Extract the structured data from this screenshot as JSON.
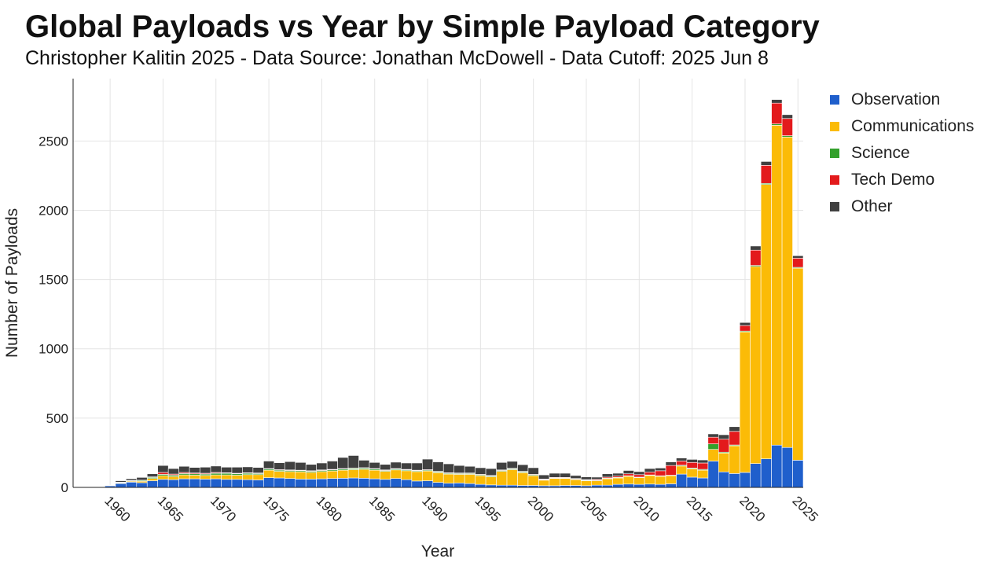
{
  "header": {
    "title": "Global Payloads vs Year by Simple Payload Category",
    "subtitle": "Christopher Kalitin 2025 - Data Source: Jonathan McDowell - Data Cutoff: 2025 Jun 8"
  },
  "chart_data": {
    "type": "bar",
    "stacked": true,
    "xlabel": "Year",
    "ylabel": "Number of Payloads",
    "xlim": [
      1956.5,
      2025.5
    ],
    "ylim": [
      0,
      2950
    ],
    "x_ticks": [
      "1960",
      "1965",
      "1970",
      "1975",
      "1980",
      "1985",
      "1990",
      "1995",
      "2000",
      "2005",
      "2010",
      "2015",
      "2020",
      "2025"
    ],
    "y_ticks": [
      "0",
      "500",
      "1000",
      "1500",
      "2000",
      "2500"
    ],
    "grid": true,
    "legend_position": "right",
    "categories": [
      1957,
      1958,
      1959,
      1960,
      1961,
      1962,
      1963,
      1964,
      1965,
      1966,
      1967,
      1968,
      1969,
      1970,
      1971,
      1972,
      1973,
      1974,
      1975,
      1976,
      1977,
      1978,
      1979,
      1980,
      1981,
      1982,
      1983,
      1984,
      1985,
      1986,
      1987,
      1988,
      1989,
      1990,
      1991,
      1992,
      1993,
      1994,
      1995,
      1996,
      1997,
      1998,
      1999,
      2000,
      2001,
      2002,
      2003,
      2004,
      2005,
      2006,
      2007,
      2008,
      2009,
      2010,
      2011,
      2012,
      2013,
      2014,
      2015,
      2016,
      2017,
      2018,
      2019,
      2020,
      2021,
      2022,
      2023,
      2024,
      2025
    ],
    "series": [
      {
        "name": "Observation",
        "color": "#1f5fcc",
        "values": [
          0,
          2,
          3,
          12,
          28,
          38,
          34,
          48,
          58,
          56,
          62,
          62,
          60,
          62,
          58,
          58,
          56,
          54,
          70,
          68,
          64,
          60,
          60,
          62,
          64,
          66,
          68,
          66,
          62,
          58,
          64,
          56,
          46,
          48,
          36,
          30,
          32,
          28,
          22,
          18,
          16,
          16,
          14,
          14,
          12,
          12,
          14,
          14,
          12,
          16,
          16,
          22,
          24,
          22,
          24,
          22,
          26,
          96,
          74,
          68,
          190,
          112,
          100,
          108,
          172,
          206,
          305,
          288,
          196
        ]
      },
      {
        "name": "Communications",
        "color": "#fbbb07",
        "values": [
          0,
          0,
          1,
          2,
          4,
          6,
          10,
          16,
          26,
          22,
          28,
          26,
          26,
          28,
          32,
          30,
          36,
          38,
          54,
          48,
          50,
          52,
          48,
          52,
          54,
          58,
          60,
          64,
          62,
          58,
          62,
          64,
          68,
          70,
          70,
          66,
          62,
          66,
          62,
          58,
          100,
          112,
          92,
          70,
          40,
          52,
          50,
          42,
          36,
          32,
          46,
          46,
          56,
          48,
          62,
          58,
          58,
          58,
          60,
          56,
          84,
          136,
          200,
          1014,
          1422,
          1980,
          2308,
          2240,
          1386
        ]
      },
      {
        "name": "Science",
        "color": "#33a02c",
        "values": [
          0,
          0,
          1,
          2,
          4,
          4,
          6,
          8,
          10,
          10,
          10,
          10,
          10,
          12,
          12,
          10,
          10,
          8,
          8,
          8,
          8,
          8,
          8,
          8,
          8,
          8,
          8,
          8,
          8,
          6,
          6,
          6,
          6,
          6,
          6,
          6,
          6,
          6,
          6,
          6,
          6,
          6,
          6,
          6,
          4,
          4,
          4,
          4,
          4,
          4,
          4,
          4,
          4,
          4,
          4,
          4,
          4,
          6,
          6,
          6,
          40,
          6,
          6,
          6,
          8,
          8,
          10,
          10,
          6
        ]
      },
      {
        "name": "Tech Demo",
        "color": "#e31a1c",
        "values": [
          0,
          0,
          0,
          0,
          2,
          2,
          2,
          4,
          14,
          8,
          8,
          6,
          6,
          6,
          4,
          4,
          4,
          4,
          4,
          4,
          4,
          4,
          4,
          4,
          4,
          4,
          4,
          4,
          4,
          4,
          4,
          4,
          4,
          4,
          4,
          4,
          4,
          4,
          4,
          4,
          4,
          4,
          4,
          4,
          4,
          4,
          4,
          4,
          4,
          6,
          8,
          10,
          14,
          18,
          20,
          36,
          70,
          30,
          40,
          46,
          48,
          94,
          98,
          40,
          110,
          130,
          150,
          124,
          66
        ]
      },
      {
        "name": "Other",
        "color": "#404040",
        "values": [
          0,
          0,
          0,
          0,
          10,
          12,
          20,
          22,
          50,
          40,
          44,
          40,
          44,
          46,
          40,
          44,
          42,
          40,
          54,
          50,
          60,
          56,
          46,
          50,
          60,
          80,
          90,
          54,
          44,
          40,
          46,
          46,
          52,
          76,
          68,
          64,
          54,
          48,
          48,
          50,
          54,
          50,
          48,
          48,
          30,
          30,
          30,
          22,
          20,
          16,
          24,
          20,
          24,
          22,
          26,
          20,
          26,
          22,
          22,
          22,
          24,
          32,
          34,
          22,
          30,
          28,
          26,
          28,
          18
        ]
      }
    ]
  }
}
